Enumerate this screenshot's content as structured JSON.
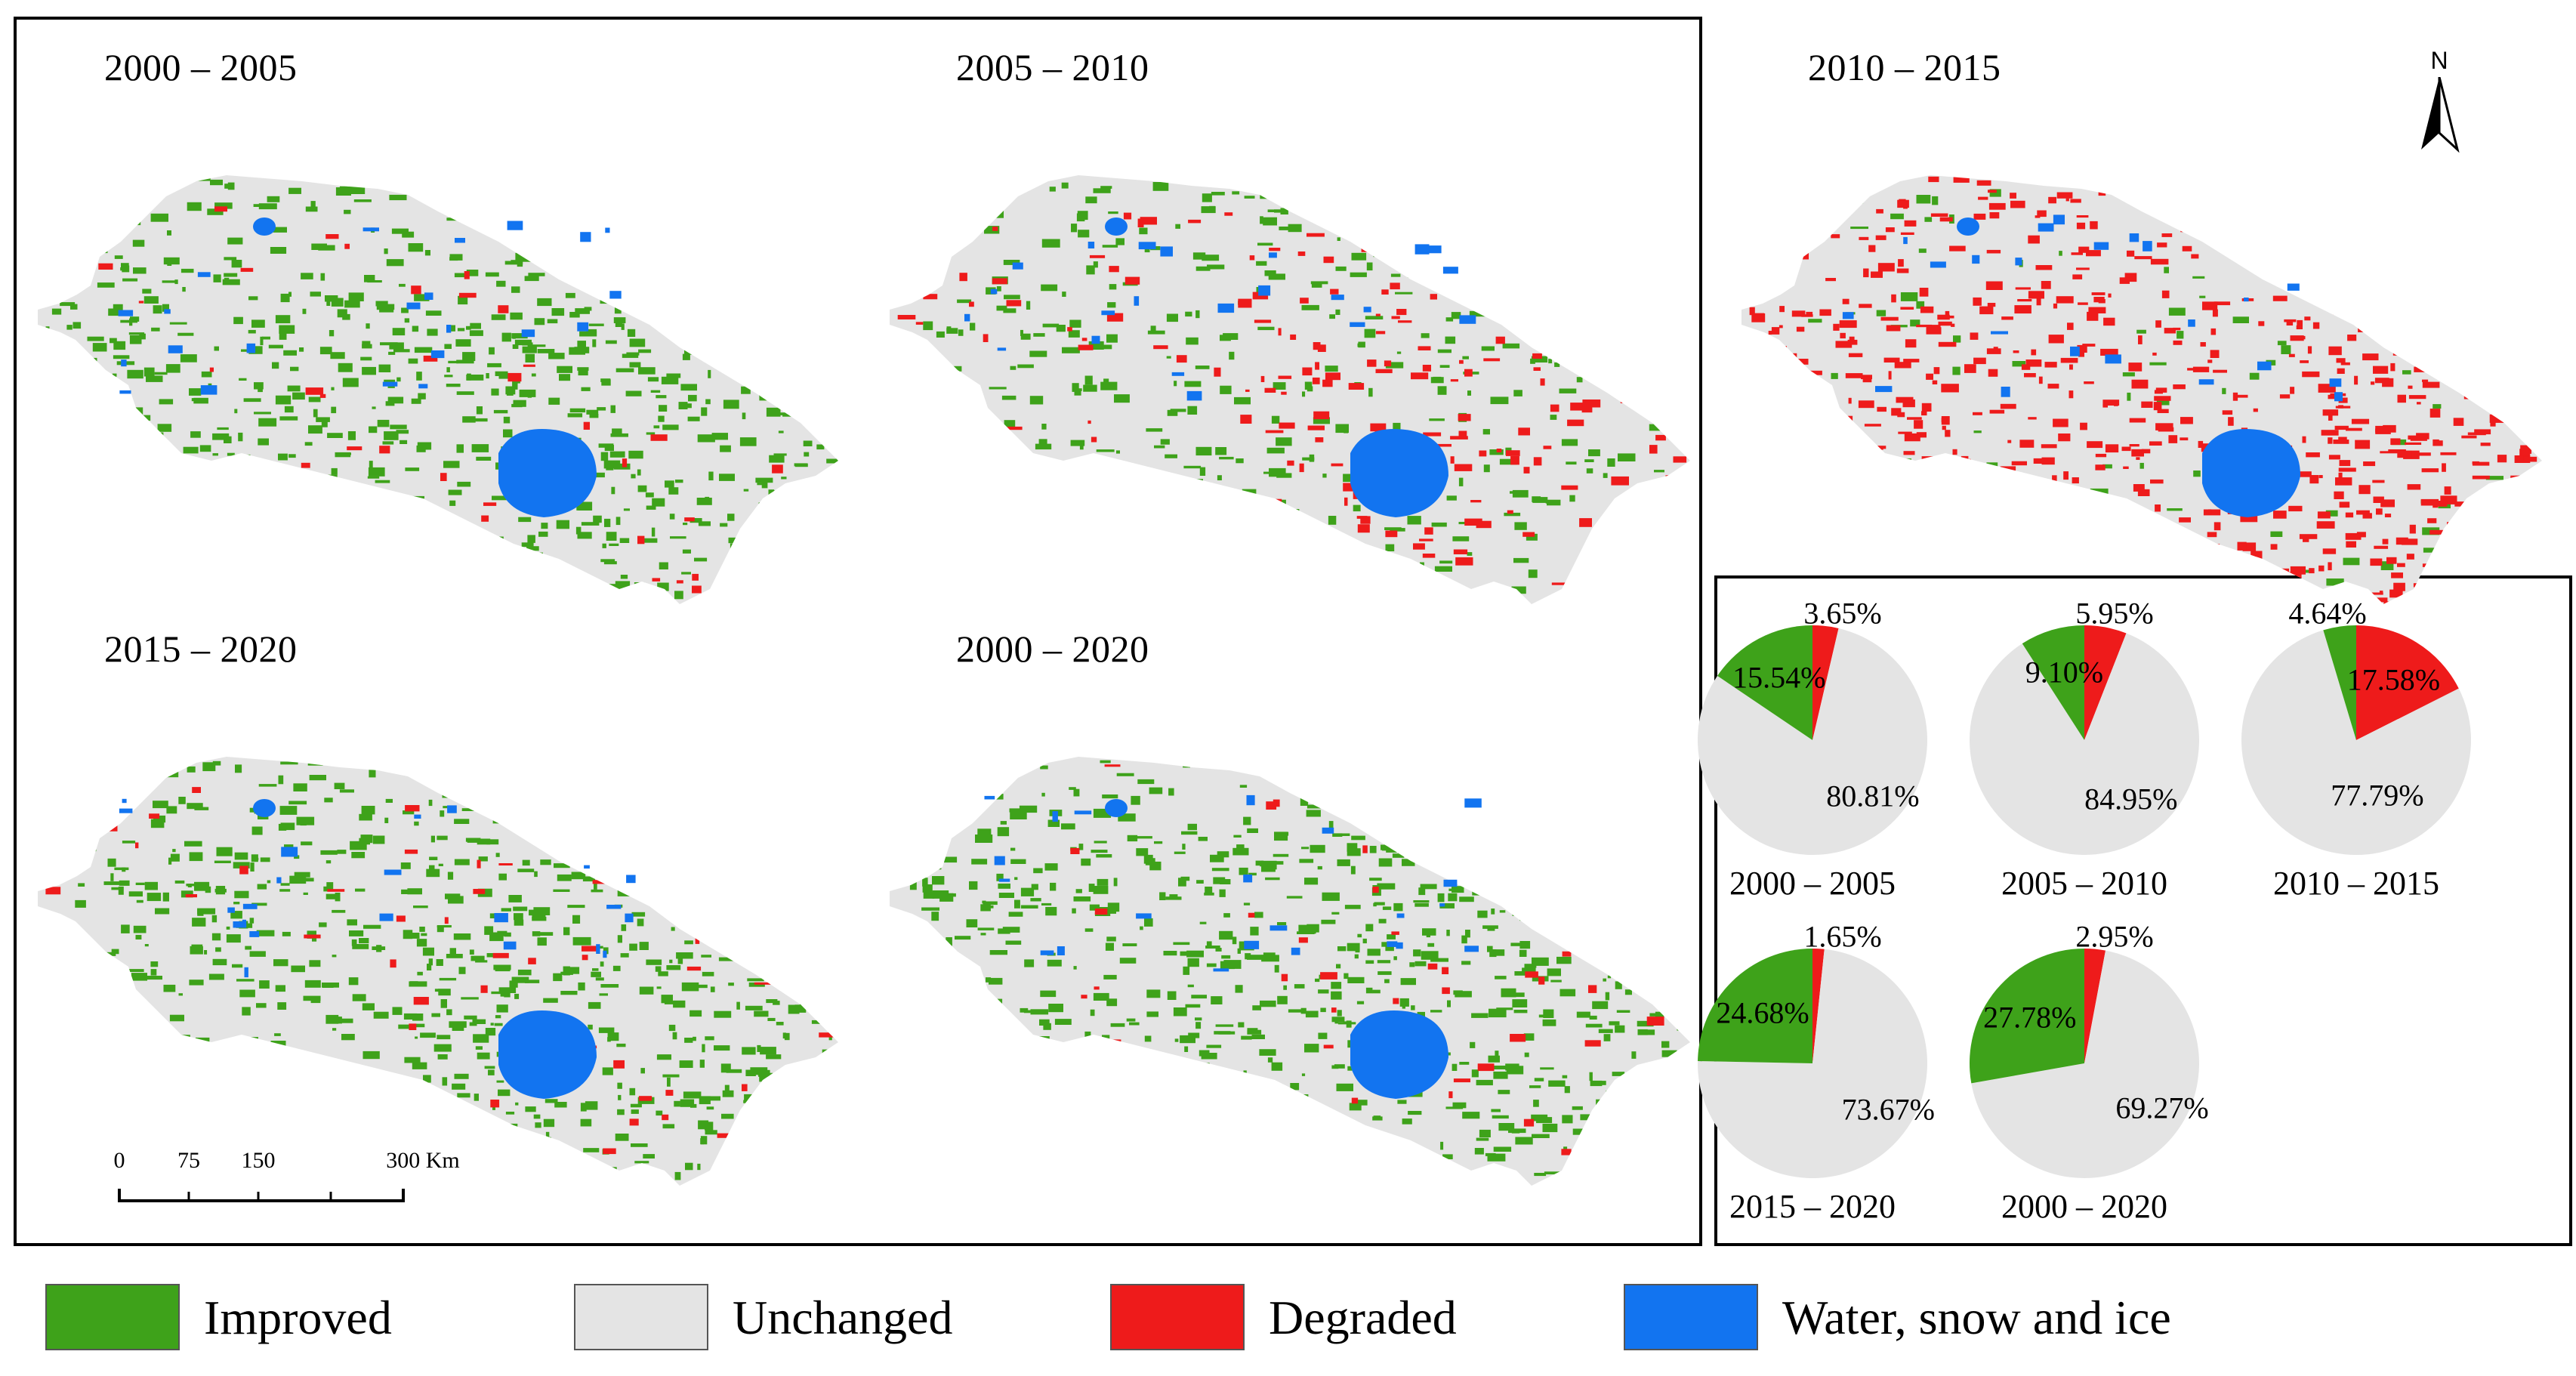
{
  "colors": {
    "improved": "#3ea21a",
    "unchanged": "#e4e4e4",
    "degraded": "#ee1b1b",
    "water": "#1274f0"
  },
  "maps": [
    {
      "title": "2000 – 2005",
      "dominant": "improved"
    },
    {
      "title": "2005 – 2010",
      "dominant": "mixed"
    },
    {
      "title": "2010 – 2015",
      "dominant": "degraded"
    },
    {
      "title": "2015 – 2020",
      "dominant": "improved"
    },
    {
      "title": "2000 – 2020",
      "dominant": "improved"
    }
  ],
  "north_arrow": {
    "label": "N",
    "icon": "north-arrow-icon"
  },
  "scale_bar": {
    "labels": [
      "0",
      "75",
      "150",
      "300 Km"
    ]
  },
  "chart_data": [
    {
      "type": "pie",
      "title": "2000 – 2005",
      "slices": [
        {
          "name": "Improved",
          "value": 15.54,
          "label": "15.54%"
        },
        {
          "name": "Unchanged",
          "value": 80.81,
          "label": "80.81%"
        },
        {
          "name": "Degraded",
          "value": 3.65,
          "label": "3.65%"
        }
      ]
    },
    {
      "type": "pie",
      "title": "2005 – 2010",
      "slices": [
        {
          "name": "Improved",
          "value": 9.1,
          "label": "9.10%"
        },
        {
          "name": "Unchanged",
          "value": 84.95,
          "label": "84.95%"
        },
        {
          "name": "Degraded",
          "value": 5.95,
          "label": "5.95%"
        }
      ]
    },
    {
      "type": "pie",
      "title": "2010 – 2015",
      "slices": [
        {
          "name": "Improved",
          "value": 4.64,
          "label": "4.64%"
        },
        {
          "name": "Unchanged",
          "value": 77.79,
          "label": "77.79%"
        },
        {
          "name": "Degraded",
          "value": 17.58,
          "label": "17.58%"
        }
      ]
    },
    {
      "type": "pie",
      "title": "2015 – 2020",
      "slices": [
        {
          "name": "Improved",
          "value": 24.68,
          "label": "24.68%"
        },
        {
          "name": "Unchanged",
          "value": 73.67,
          "label": "73.67%"
        },
        {
          "name": "Degraded",
          "value": 1.65,
          "label": "1.65%"
        }
      ]
    },
    {
      "type": "pie",
      "title": "2000 – 2020",
      "slices": [
        {
          "name": "Improved",
          "value": 27.78,
          "label": "27.78%"
        },
        {
          "name": "Unchanged",
          "value": 69.27,
          "label": "69.27%"
        },
        {
          "name": "Degraded",
          "value": 2.95,
          "label": "2.95%"
        }
      ]
    }
  ],
  "legend": [
    {
      "label": "Improved",
      "color_key": "improved"
    },
    {
      "label": "Unchanged",
      "color_key": "unchanged"
    },
    {
      "label": "Degraded",
      "color_key": "degraded"
    },
    {
      "label": "Water, snow and ice",
      "color_key": "water"
    }
  ]
}
